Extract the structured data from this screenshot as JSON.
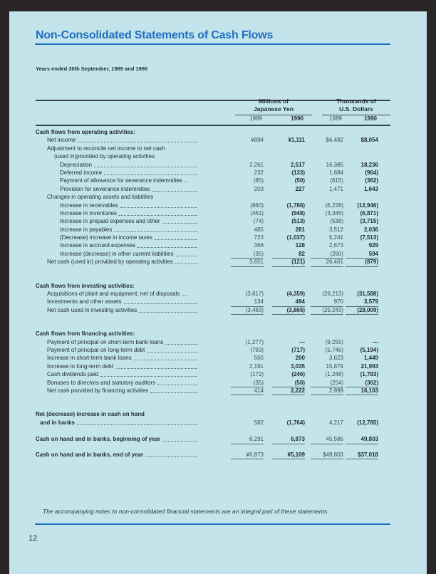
{
  "title": "Non-Consolidated Statements of Cash Flows",
  "subtitle": "Years ended 30th September, 1989 and 1990",
  "columns": {
    "yen_header": [
      "Millions of",
      "Japanese Yen"
    ],
    "usd_header": [
      "Thousands of",
      "U.S. Dollars"
    ],
    "years": [
      "1989",
      "1990",
      "1989",
      "1990"
    ]
  },
  "sections": [
    {
      "heading": "Cash flows from operating activities:",
      "rows": [
        {
          "label": "Net income",
          "level": 1,
          "dots": true,
          "values": [
            "¥894",
            "¥1,111",
            "$6,482",
            "$8,054"
          ]
        },
        {
          "label": "Adjustment to reconcile net income to net cash",
          "level": 1
        },
        {
          "label": "(used in)provided by operating activities",
          "level": 2
        },
        {
          "label": "Depreciation",
          "level": 3,
          "dots": true,
          "values": [
            "2,261",
            "2,517",
            "16,385",
            "18,236"
          ]
        },
        {
          "label": "Deferred income",
          "level": 3,
          "dots": true,
          "values": [
            "232",
            "(133)",
            "1,684",
            "(964)"
          ]
        },
        {
          "label": "Payment of allowance for severance indemnities ...",
          "level": 3,
          "values": [
            "(85)",
            "(50)",
            "(615)",
            "(362)"
          ]
        },
        {
          "label": "Provision for severance indemnities",
          "level": 3,
          "dots": true,
          "values": [
            "203",
            "227",
            "1,471",
            "1,643"
          ]
        },
        {
          "label": "Changes in operating assets and liabilities",
          "level": 1
        },
        {
          "label": "Increase in receivables",
          "level": 3,
          "dots": true,
          "values": [
            "(860)",
            "(1,786)",
            "(6,228)",
            "(12,946)"
          ]
        },
        {
          "label": "Increase in inventories",
          "level": 3,
          "dots": true,
          "values": [
            "(461)",
            "(948)",
            "(3,346)",
            "(6,871)"
          ]
        },
        {
          "label": "Increase in prepaid expenses and other",
          "level": 3,
          "dots": true,
          "values": [
            "(74)",
            "(513)",
            "(538)",
            "(3,715)"
          ]
        },
        {
          "label": "Increase in payables",
          "level": 3,
          "dots": true,
          "values": [
            "485",
            "281",
            "3,512",
            "2,036"
          ]
        },
        {
          "label": "(Decrease) increase in income taxes",
          "level": 3,
          "dots": true,
          "values": [
            "723",
            "(1,037)",
            "5,241",
            "(7,513)"
          ]
        },
        {
          "label": "Increase in accrued expenses",
          "level": 3,
          "dots": true,
          "values": [
            "368",
            "128",
            "2,673",
            "929"
          ]
        },
        {
          "label": "Increase (decrease) in other current liabilities",
          "level": 3,
          "dots": true,
          "underline": true,
          "values": [
            "(35)",
            "82",
            "(260)",
            "594"
          ]
        },
        {
          "label": "Net cash (used in) provided by operating activities",
          "level": 1,
          "dots": true,
          "total": true,
          "values": [
            "3,651",
            "(121)",
            "26,461",
            "(879)"
          ]
        }
      ]
    },
    {
      "heading": "Cash flows from investing activities:",
      "rows": [
        {
          "label": "Acquisitions of plant and equipment, net of disposals ....",
          "level": 1,
          "values": [
            "(3,617)",
            "(4,359)",
            "(26,213)",
            "(31,588)"
          ]
        },
        {
          "label": "Investments and other assets",
          "level": 1,
          "dots": true,
          "underline": true,
          "values": [
            "134",
            "494",
            "970",
            "3,579"
          ]
        },
        {
          "label": "Net cash used in investing activities",
          "level": 1,
          "dots": true,
          "total": true,
          "values": [
            "(3,483)",
            "(3,865)",
            "(25,243)",
            "(28,009)"
          ]
        }
      ]
    },
    {
      "heading": "Cash flows from financing activities:",
      "rows": [
        {
          "label": "Payment of principal on short-term bank loans",
          "level": 1,
          "dots": true,
          "values": [
            "(1,277)",
            "—",
            "(9,255)",
            "—"
          ]
        },
        {
          "label": "Payment of principal on long-term debt",
          "level": 1,
          "dots": true,
          "values": [
            "(793)",
            "(717)",
            "(5,746)",
            "(5,194)"
          ]
        },
        {
          "label": "Increase in  short-term bank loans",
          "level": 1,
          "dots": true,
          "values": [
            "500",
            "200",
            "3,623",
            "1,449"
          ]
        },
        {
          "label": "Increase in long-term debt",
          "level": 1,
          "dots": true,
          "values": [
            "2,191",
            "3,035",
            "15,879",
            "21,993"
          ]
        },
        {
          "label": "Cash dividends paid",
          "level": 1,
          "dots": true,
          "values": [
            "(172)",
            "(246)",
            "(1,248)",
            "(1,783)"
          ]
        },
        {
          "label": "Bonuses to directors and statutory auditors",
          "level": 1,
          "dots": true,
          "underline": true,
          "values": [
            "(35)",
            "(50)",
            "(254)",
            "(362)"
          ]
        },
        {
          "label": "Net cash provided by financing activities",
          "level": 1,
          "dots": true,
          "total": true,
          "values": [
            "414",
            "2,222",
            "2,999",
            "16,103"
          ]
        }
      ]
    },
    {
      "heading": "Net (decrease) increase in cash on hand",
      "rows": [
        {
          "label": "and in banks",
          "level": 0,
          "indent": true,
          "dots": true,
          "values": [
            "582",
            "(1,764)",
            "4,217",
            "(12,785)"
          ]
        }
      ]
    },
    {
      "rows": [
        {
          "label": "Cash on hand and in banks, beginning of year",
          "level": 0,
          "dots": true,
          "total": true,
          "values": [
            "6,291",
            "6,873",
            "45,586",
            "49,803"
          ]
        }
      ]
    },
    {
      "rows": [
        {
          "label": "Cash on hand and in banks, end of year",
          "level": 0,
          "dots": true,
          "total": true,
          "values": [
            "¥6,873",
            "¥5,109",
            "$49,803",
            "$37,018"
          ]
        }
      ]
    }
  ],
  "note": "The accompanying notes to non-consolidated financial statements are an integral part of these statements.",
  "page_number": "12",
  "colors": {
    "accent": "#1f6fc0",
    "paper": "#c4e4ec",
    "background": "#2b2527"
  }
}
